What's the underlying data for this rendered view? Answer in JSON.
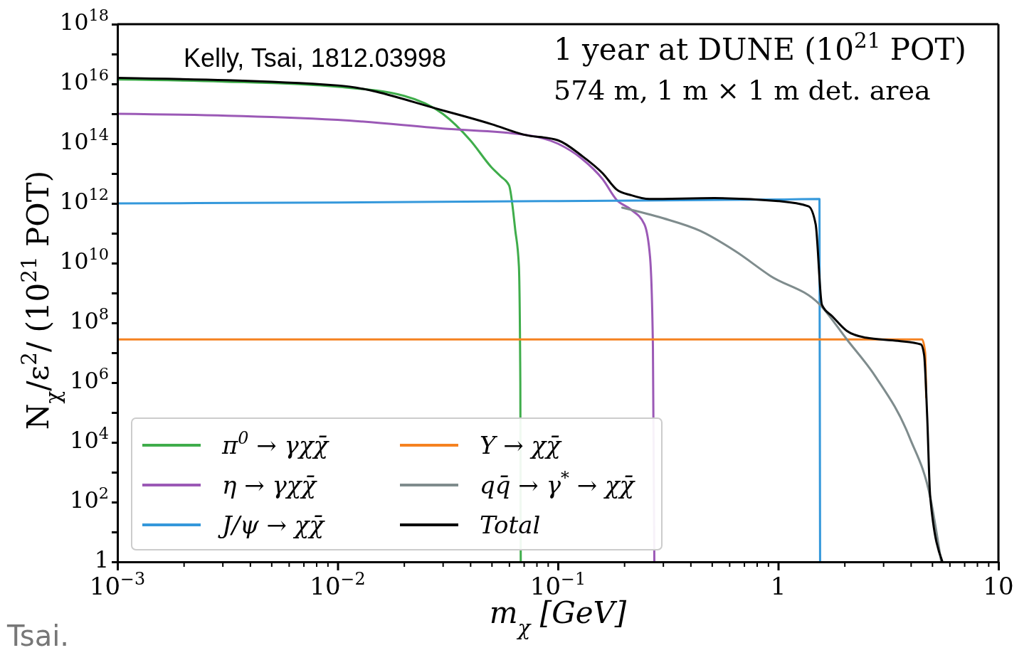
{
  "chart_data": {
    "type": "line",
    "xlabel": "m$_{χ}$ [GeV]",
    "ylabel": "N$_{χ}$/ε$^{2}$/ (10$^{21}$ POT)",
    "log": "xy",
    "grid": false,
    "legend": "bottom left",
    "line_style": "solid",
    "marker": "none",
    "xlim": [
      0.001,
      10
    ],
    "xticks": [
      {
        "value": 0.001,
        "label": "10$^{−3}$"
      },
      {
        "value": 0.002,
        "label": null
      },
      {
        "value": 0.003,
        "label": null
      },
      {
        "value": 0.004,
        "label": null
      },
      {
        "value": 0.005,
        "label": null
      },
      {
        "value": 0.006,
        "label": null
      },
      {
        "value": 0.007,
        "label": null
      },
      {
        "value": 0.008,
        "label": null
      },
      {
        "value": 0.009,
        "label": null
      },
      {
        "value": 0.01,
        "label": "10$^{−2}$"
      },
      {
        "value": 0.02,
        "label": null
      },
      {
        "value": 0.03,
        "label": null
      },
      {
        "value": 0.04,
        "label": null
      },
      {
        "value": 0.05,
        "label": null
      },
      {
        "value": 0.06,
        "label": null
      },
      {
        "value": 0.07,
        "label": null
      },
      {
        "value": 0.08,
        "label": null
      },
      {
        "value": 0.09,
        "label": null
      },
      {
        "value": 0.1,
        "label": "10$^{−1}$"
      },
      {
        "value": 0.2,
        "label": null
      },
      {
        "value": 0.3,
        "label": null
      },
      {
        "value": 0.4,
        "label": null
      },
      {
        "value": 0.5,
        "label": null
      },
      {
        "value": 0.6,
        "label": null
      },
      {
        "value": 0.7,
        "label": null
      },
      {
        "value": 0.8,
        "label": null
      },
      {
        "value": 0.9,
        "label": null
      },
      1,
      {
        "value": 2,
        "label": null
      },
      {
        "value": 3,
        "label": null
      },
      {
        "value": 4,
        "label": null
      },
      {
        "value": 5,
        "label": null
      },
      {
        "value": 6,
        "label": null
      },
      {
        "value": 7,
        "label": null
      },
      {
        "value": 8,
        "label": null
      },
      {
        "value": 9,
        "label": null
      },
      10
    ],
    "ylim": [
      1,
      1e+18
    ],
    "yticks": [
      1,
      {
        "value": 10.0,
        "label": null
      },
      {
        "value": 100.0,
        "label": "10$^{2}$"
      },
      {
        "value": 1000.0,
        "label": null
      },
      {
        "value": 10000.0,
        "label": "10$^{4}$"
      },
      {
        "value": 100000.0,
        "label": null
      },
      {
        "value": 1000000.0,
        "label": "10$^{6}$"
      },
      {
        "value": 10000000.0,
        "label": null
      },
      {
        "value": 100000000.0,
        "label": "10$^{8}$"
      },
      {
        "value": 1000000000.0,
        "label": null
      },
      {
        "value": 10000000000.0,
        "label": "10$^{10}$"
      },
      {
        "value": 100000000000.0,
        "label": null
      },
      {
        "value": 1000000000000.0,
        "label": "10$^{12}$"
      },
      {
        "value": 10000000000000.0,
        "label": null
      },
      {
        "value": 100000000000000.0,
        "label": "10$^{14}$"
      },
      {
        "value": 1000000000000000.0,
        "label": null
      },
      {
        "value": 1e+16,
        "label": "10$^{16}$"
      },
      {
        "value": 1e+17,
        "label": null
      },
      {
        "value": 1e+18,
        "label": "10$^{18}$"
      }
    ],
    "annotations": [
      "Kelly, Tsai, 1812.03998",
      "1 year at DUNE (10$^{21}$ POT)",
      "574 m,  1 m × 1 m  det. area",
      "Tsai."
    ],
    "series": [
      {
        "name": "π$^{0}$ → γχχ̄",
        "color": "#3fad4b",
        "x": [
          0.001,
          0.003,
          0.01,
          0.02,
          0.03,
          0.04,
          0.05,
          0.055,
          0.06,
          0.064,
          0.0665,
          0.0675,
          0.0678
        ],
        "values": [
          1.4e+16,
          1.2e+16,
          8000000000000000.0,
          4000000000000000.0,
          1000000000000000.0,
          130000000000000.0,
          16000000000000.0,
          8000000000000.0,
          4000000000000.0,
          130000000000.0,
          8000000000.0,
          1000000.0,
          1
        ]
      },
      {
        "name": "η → γχχ̄",
        "color": "#9b59b6",
        "x": [
          0.001,
          0.01,
          0.03,
          0.07,
          0.1,
          0.128,
          0.16,
          0.185,
          0.214,
          0.247,
          0.262,
          0.27,
          0.274
        ],
        "values": [
          1000000000000000.0,
          630000000000000.0,
          320000000000000.0,
          200000000000000.0,
          100000000000000.0,
          32000000000000.0,
          6300000000000.0,
          1300000000000.0,
          630000000000.0,
          200000000000.0,
          16000000000.0,
          16000000.0,
          1
        ]
      },
      {
        "name": "J/ψ → χχ̄",
        "color": "#3498db",
        "x": [
          0.001,
          0.01,
          0.1,
          1,
          1.54,
          1.55
        ],
        "values": [
          1000000000000.0,
          1070000000000.0,
          1200000000000.0,
          1350000000000.0,
          1400000000000.0,
          1
        ]
      },
      {
        "name": "Υ → χχ̄",
        "color": "#f58220",
        "x": [
          0.001,
          0.1,
          1,
          4.5,
          4.65,
          4.7
        ],
        "values": [
          28000000.0,
          28000000.0,
          28000000.0,
          28000000.0,
          10000000.0,
          320000.0
        ]
      },
      {
        "name": "qq̄ → γ$^{*}$ → χχ̄",
        "color": "#7f8c8d",
        "x": [
          0.196,
          0.3,
          0.443,
          0.64,
          0.919,
          1.55,
          2.05,
          2.75,
          3.96,
          4.93,
          5.5
        ],
        "values": [
          720000000000.0,
          320000000000.0,
          120000000000.0,
          25000000000.0,
          3800000000.0,
          400000000.0,
          28000000.0,
          1700000.0,
          14000.0,
          120,
          1
        ]
      },
      {
        "name": "Total",
        "color": "#000000",
        "x": [
          0.001,
          0.01,
          0.03,
          0.05,
          0.07,
          0.1,
          0.128,
          0.16,
          0.185,
          0.214,
          0.26,
          0.513,
          1,
          1.374,
          1.48,
          1.58,
          1.77,
          2.05,
          2.5,
          3.5,
          4.45,
          4.6,
          4.75,
          4.9,
          5.57
        ],
        "values": [
          1.6e+16,
          8900000000000000.0,
          1300000000000000.0,
          450000000000000.0,
          200000000000000.0,
          130000000000000.0,
          40000000000000.0,
          10000000000000.0,
          2900000000000.0,
          1900000000000.0,
          1400000000000.0,
          1500000000000.0,
          1200000000000.0,
          800000000000.0,
          200000000000.0,
          400000000.0,
          160000000.0,
          54000000.0,
          32000000.0,
          25000000.0,
          19000000.0,
          8300000.0,
          70000.0,
          155,
          1
        ]
      }
    ]
  }
}
